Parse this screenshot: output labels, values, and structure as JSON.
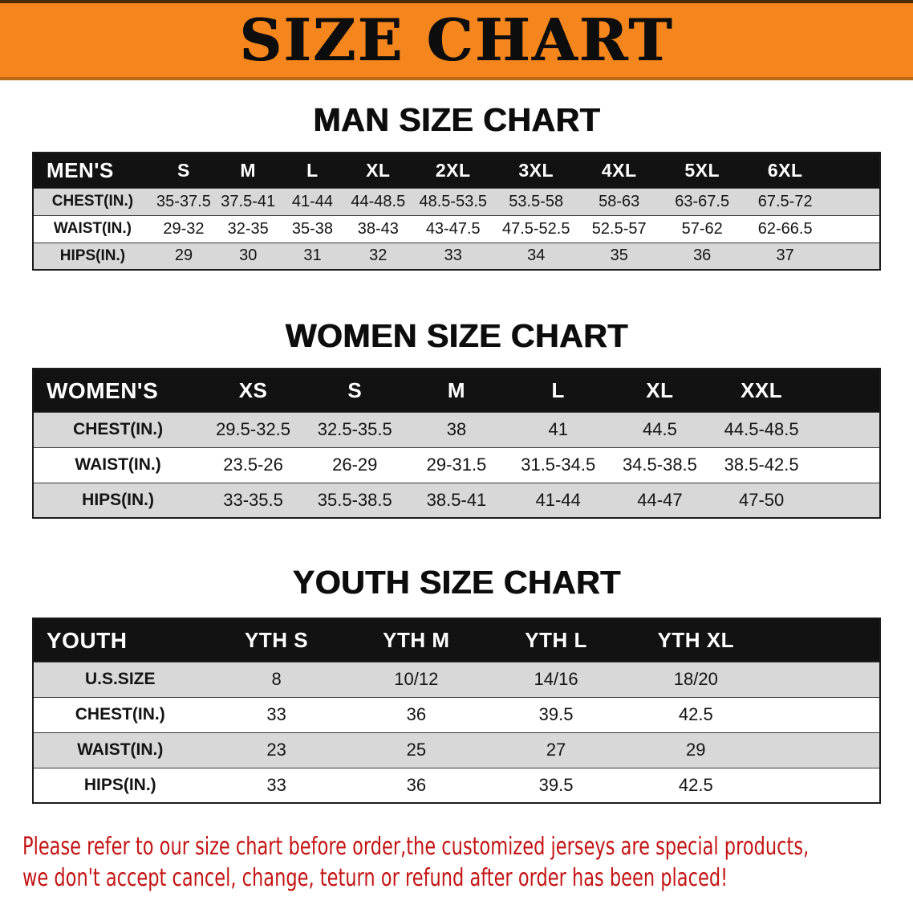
{
  "banner": {
    "title": "SIZE CHART"
  },
  "sections": [
    {
      "id": "men",
      "heading": "MAN SIZE CHART",
      "table": {
        "header": [
          "MEN'S",
          "S",
          "M",
          "L",
          "XL",
          "2XL",
          "3XL",
          "4XL",
          "5XL",
          "6XL"
        ],
        "rows": [
          [
            "CHEST(IN.)",
            "35-37.5",
            "37.5-41",
            "41-44",
            "44-48.5",
            "48.5-53.5",
            "53.5-58",
            "58-63",
            "63-67.5",
            "67.5-72"
          ],
          [
            "WAIST(IN.)",
            "29-32",
            "32-35",
            "35-38",
            "38-43",
            "43-47.5",
            "47.5-52.5",
            "52.5-57",
            "57-62",
            "62-66.5"
          ],
          [
            "HIPS(IN.)",
            "29",
            "30",
            "31",
            "32",
            "33",
            "34",
            "35",
            "36",
            "37"
          ]
        ]
      }
    },
    {
      "id": "women",
      "heading": "WOMEN SIZE CHART",
      "table": {
        "header": [
          "WOMEN'S",
          "XS",
          "S",
          "M",
          "L",
          "XL",
          "XXL"
        ],
        "rows": [
          [
            "CHEST(IN.)",
            "29.5-32.5",
            "32.5-35.5",
            "38",
            "41",
            "44.5",
            "44.5-48.5"
          ],
          [
            "WAIST(IN.)",
            "23.5-26",
            "26-29",
            "29-31.5",
            "31.5-34.5",
            "34.5-38.5",
            "38.5-42.5"
          ],
          [
            "HIPS(IN.)",
            "33-35.5",
            "35.5-38.5",
            "38.5-41",
            "41-44",
            "44-47",
            "47-50"
          ]
        ]
      }
    },
    {
      "id": "youth",
      "heading": "YOUTH SIZE CHART",
      "table": {
        "header": [
          "YOUTH",
          "YTH S",
          "YTH M",
          "YTH L",
          "YTH XL"
        ],
        "rows": [
          [
            "U.S.SIZE",
            "8",
            "10/12",
            "14/16",
            "18/20"
          ],
          [
            "CHEST(IN.)",
            "33",
            "36",
            "39.5",
            "42.5"
          ],
          [
            "WAIST(IN.)",
            "23",
            "25",
            "27",
            "29"
          ],
          [
            "HIPS(IN.)",
            "33",
            "36",
            "39.5",
            "42.5"
          ]
        ]
      }
    }
  ],
  "footer": {
    "line1": "Please refer to our size chart before order,the customized jerseys are special products,",
    "line2": "we don't accept cancel, change, teturn or refund after order has been placed!"
  },
  "colors": {
    "banner_orange": "#f5861d",
    "header_black": "#121212",
    "stripe_gray": "#d8d8d8",
    "disclaimer_red": "#c41414",
    "text_black": "#111111"
  }
}
